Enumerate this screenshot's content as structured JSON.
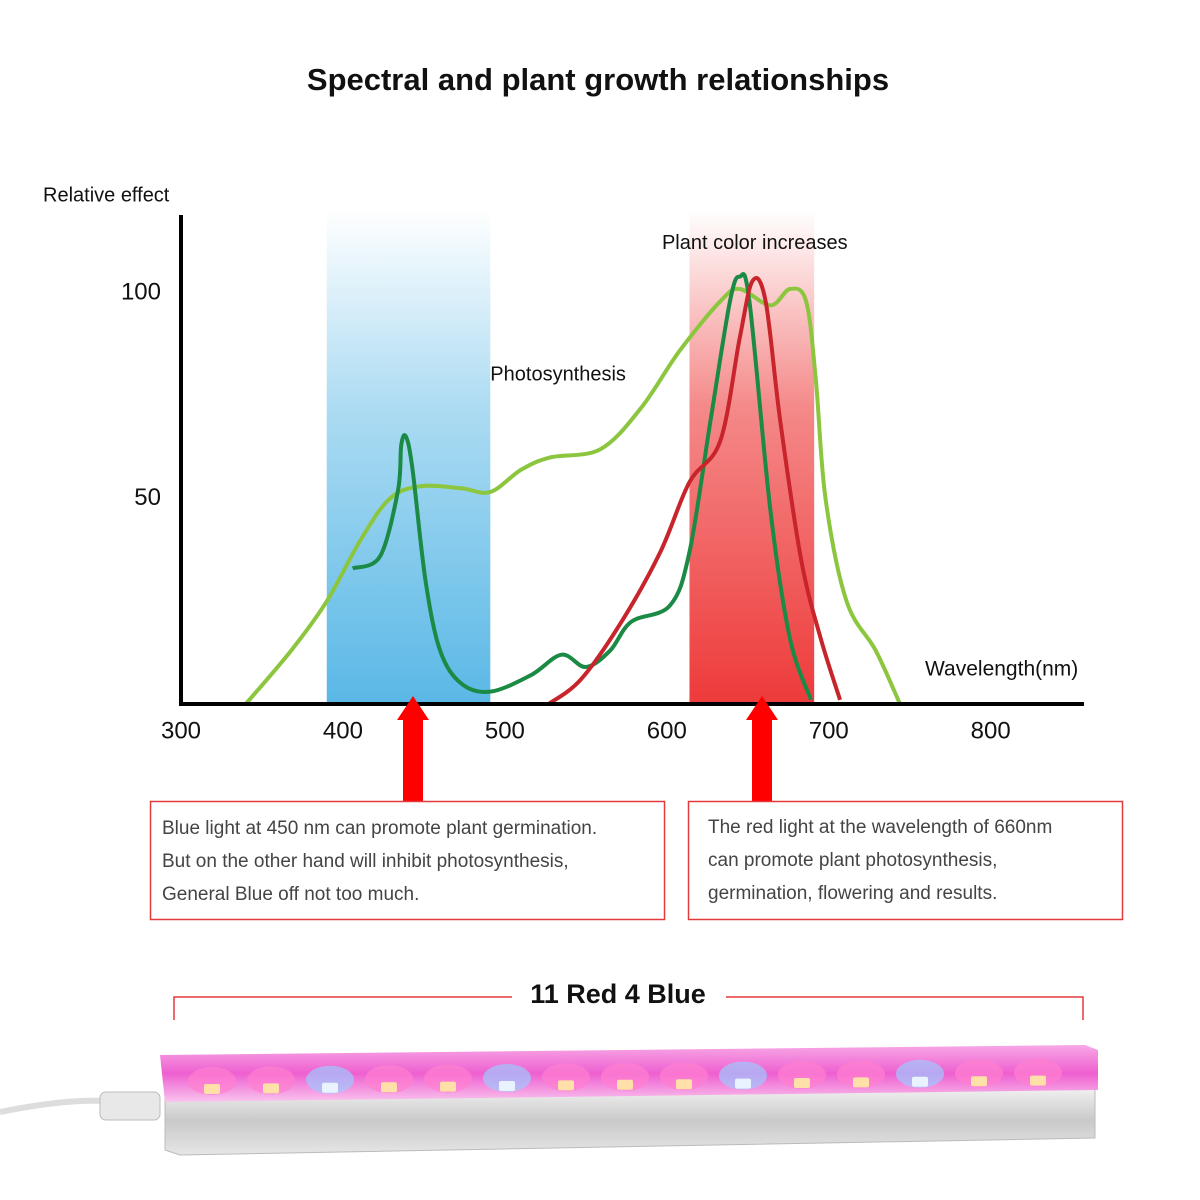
{
  "chart_data": {
    "type": "line",
    "title": "Spectral and plant growth relationships",
    "y_label": "Relative effect",
    "x_label": "Wavelength(nm)",
    "xlim": [
      300,
      857
    ],
    "ylim": [
      0,
      119
    ],
    "xticks": [
      300,
      400,
      500,
      600,
      700,
      800
    ],
    "yticks": [
      50,
      100
    ],
    "annotations": [
      {
        "text": "Photosynthesis",
        "x": 491,
        "y": 80
      },
      {
        "text": "Plant color increases",
        "x": 597,
        "y": 112
      }
    ],
    "bands": [
      {
        "range": [
          390,
          491
        ],
        "color": "#5ab8e6"
      },
      {
        "range": [
          614,
          691
        ],
        "color": "#ee3a3a"
      }
    ],
    "series": [
      {
        "color": "#8cc63f",
        "x": [
          340,
          368,
          390,
          411,
          429,
          448,
          473,
          491,
          510,
          528,
          559,
          584,
          608,
          633,
          645,
          664,
          676,
          686,
          692,
          698,
          711,
          729,
          744
        ],
        "values": [
          0,
          13,
          25,
          40,
          50,
          53,
          52.5,
          51.6,
          57,
          60,
          62,
          72,
          86,
          98,
          101,
          97,
          101,
          98,
          79,
          50,
          25,
          13,
          0
        ]
      },
      {
        "color": "#1a8a45",
        "x": [
          406,
          423,
          434,
          436,
          439,
          443,
          451,
          460,
          473,
          491,
          516,
          535,
          550,
          565,
          578,
          602,
          614,
          627,
          639,
          645,
          651,
          664,
          676,
          689
        ],
        "values": [
          33,
          36,
          52,
          63,
          65,
          57,
          30,
          13,
          5,
          3,
          7,
          12,
          9,
          13,
          20,
          24,
          37,
          69,
          98,
          104,
          98,
          47,
          16,
          1
        ]
      },
      {
        "color": "#c8242b",
        "x": [
          527,
          547,
          572,
          596,
          614,
          633,
          645,
          653,
          661,
          670,
          683,
          695,
          707
        ],
        "values": [
          0,
          6,
          20,
          37,
          54,
          64,
          89,
          103,
          98,
          69,
          35,
          16,
          1
        ]
      }
    ]
  },
  "notes": [
    {
      "lines": [
        "Blue light at 450 nm can promote plant germination.",
        "But on the other hand will inhibit photosynthesis,",
        "General Blue off not too much."
      ]
    },
    {
      "lines": [
        "The red light at the wavelength of 660nm",
        "can promote plant photosynthesis,",
        "germination, flowering and results."
      ]
    }
  ],
  "product": {
    "label": "11 Red 4 Blue"
  }
}
